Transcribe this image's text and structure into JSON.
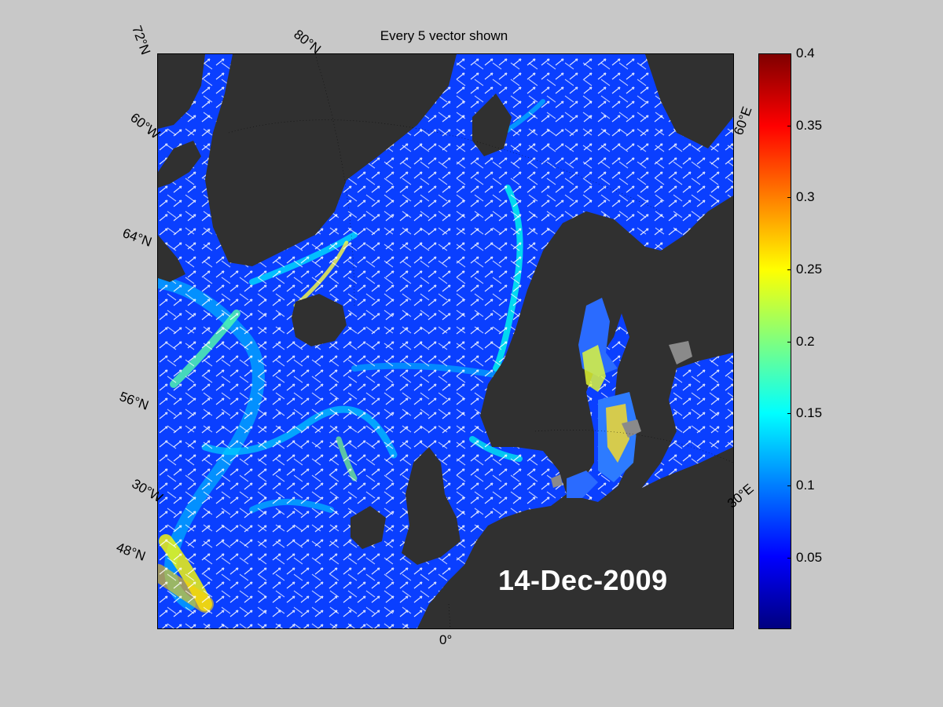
{
  "title": "Every 5 vector shown",
  "date_label": "14-Dec-2009",
  "grid_labels": {
    "lat72": "72°N",
    "lat80": "80°N",
    "lon60w": "60°W",
    "lat64": "64°N",
    "lat56": "56°N",
    "lon30w": "30°W",
    "lat48": "48°N",
    "lon0": "0°",
    "lon60e": "60°E",
    "lon30e": "30°E"
  },
  "colorbar": {
    "range": [
      0,
      0.4
    ],
    "ticks": [
      "0.4",
      "0.35",
      "0.3",
      "0.25",
      "0.2",
      "0.15",
      "0.1",
      "0.05"
    ],
    "colormap": "jet"
  },
  "colors": {
    "land": "#303030",
    "ocean_low": "#0000ff",
    "ocean_mid": "#0a4cff",
    "vectors": "#ffffff",
    "background": "#c8c8c8"
  }
}
